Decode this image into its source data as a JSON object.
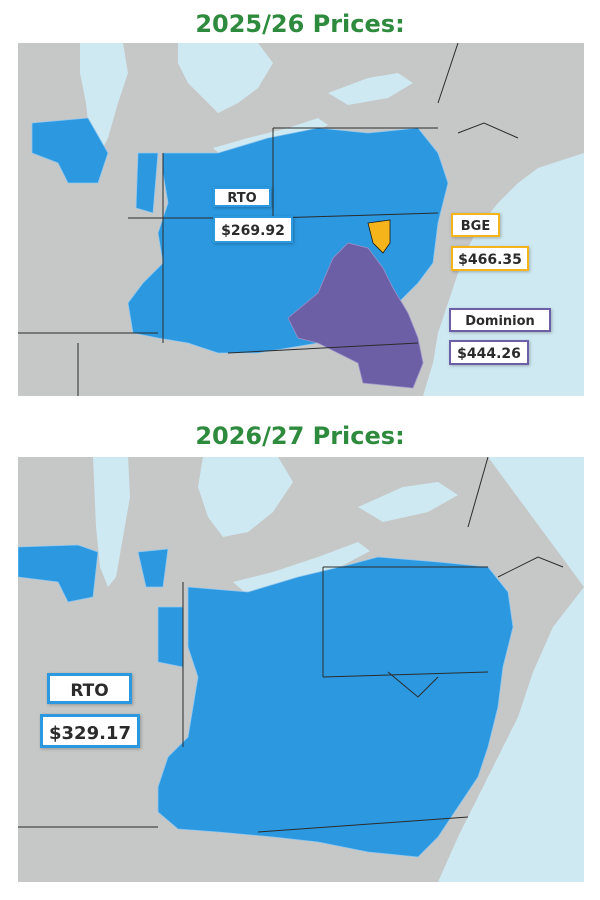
{
  "panels": [
    {
      "title": "2025/26 Prices:",
      "zones": [
        {
          "name": "RTO",
          "price": "$269.92",
          "color": "#2b98e0"
        },
        {
          "name": "BGE",
          "price": "$466.35",
          "color": "#f5b419"
        },
        {
          "name": "Dominion",
          "price": "$444.26",
          "color": "#6c5fa6"
        }
      ]
    },
    {
      "title": "2026/27 Prices:",
      "zones": [
        {
          "name": "RTO",
          "price": "$329.17",
          "color": "#2b98e0"
        }
      ]
    }
  ],
  "colors": {
    "title": "#2e8b3e",
    "water": "#cfe9f2",
    "land": "#c6c8c8",
    "pjm": "#2b98e0",
    "dominion": "#6c5fa6",
    "bge": "#f5b419"
  }
}
